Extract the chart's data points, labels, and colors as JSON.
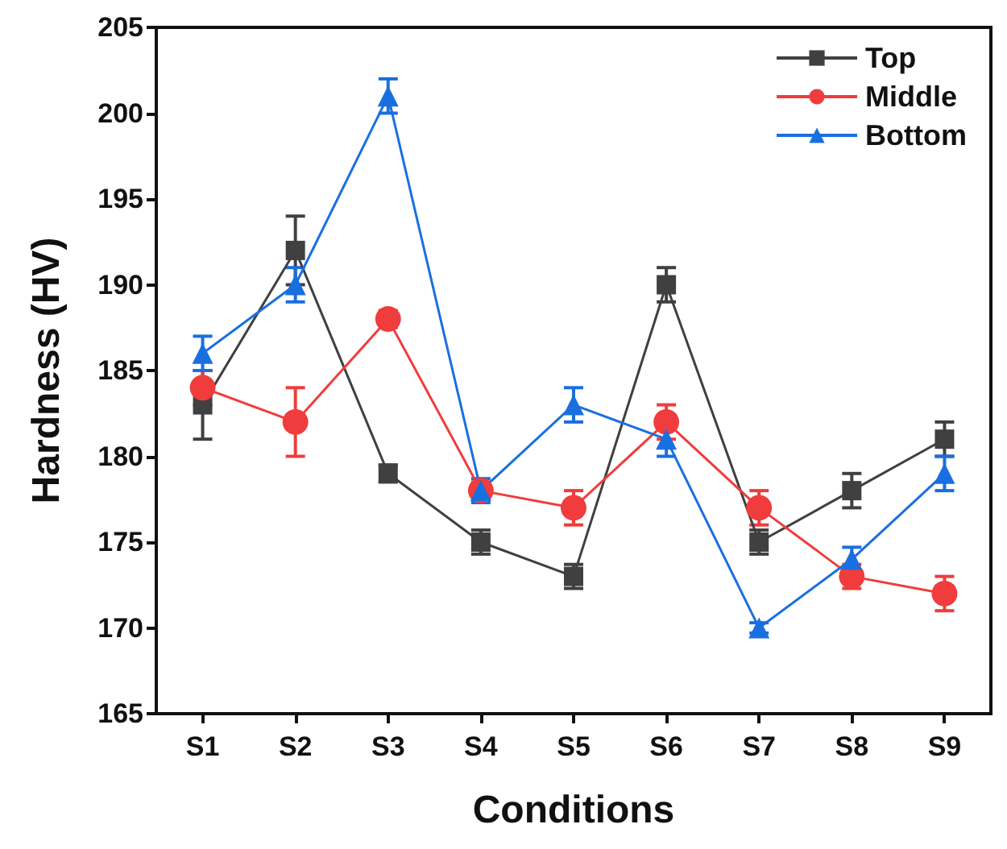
{
  "chart_data": {
    "type": "line",
    "xlabel": "Conditions",
    "ylabel": "Hardness (HV)",
    "categories": [
      "S1",
      "S2",
      "S3",
      "S4",
      "S5",
      "S6",
      "S7",
      "S8",
      "S9"
    ],
    "series": [
      {
        "name": "Top",
        "color": "#404040",
        "marker": "square",
        "values": [
          183,
          192,
          179,
          175,
          173,
          190,
          175,
          178,
          181
        ],
        "errors": [
          2,
          2,
          0.5,
          0.7,
          0.7,
          1,
          0.7,
          1,
          1
        ]
      },
      {
        "name": "Middle",
        "color": "#f03c3c",
        "marker": "circle",
        "values": [
          184,
          182,
          188,
          178,
          177,
          182,
          177,
          173,
          172
        ],
        "errors": [
          1,
          2,
          0.5,
          0.5,
          1,
          1,
          1,
          0.7,
          1
        ]
      },
      {
        "name": "Bottom",
        "color": "#1a6fe0",
        "marker": "triangle",
        "values": [
          186,
          190,
          201,
          178,
          183,
          181,
          170,
          174,
          179
        ],
        "errors": [
          1,
          1,
          1,
          0.7,
          1,
          1,
          0.3,
          0.7,
          1
        ]
      }
    ],
    "ylim": [
      165,
      205
    ],
    "yticks": [
      165,
      170,
      175,
      180,
      185,
      190,
      195,
      200,
      205
    ],
    "grid": false,
    "legend": "top right"
  }
}
